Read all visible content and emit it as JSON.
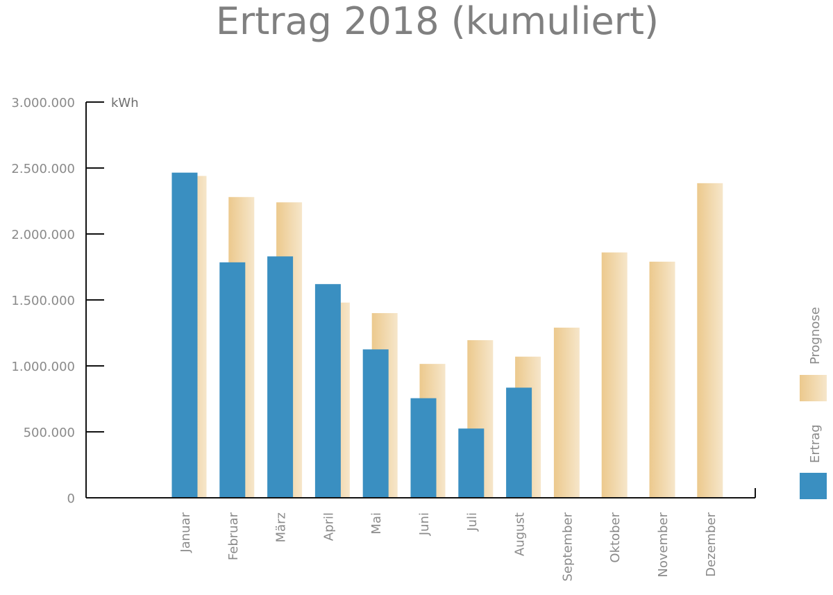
{
  "colors": {
    "ertrag": "#3a8fc1",
    "prognose_start": "#ecc98d",
    "prognose_end": "#f6e6ca",
    "axis": "#111111",
    "text": "#8a8a8a",
    "title": "#808080"
  },
  "chart_data": {
    "type": "bar",
    "title": "Ertrag 2018 (kumuliert)",
    "ylabel": "kWh",
    "xlabel": "",
    "ylim": [
      0,
      3000000
    ],
    "y_ticks": [
      0,
      500000,
      1000000,
      1500000,
      2000000,
      2500000,
      3000000
    ],
    "y_tick_labels": [
      "0",
      "500.000",
      "1.000.000",
      "1.500.000",
      "2.000.000",
      "2.500.000",
      "3.000.000"
    ],
    "categories": [
      "Januar",
      "Februar",
      "März",
      "April",
      "Mai",
      "Juni",
      "Juli",
      "August",
      "September",
      "Oktober",
      "November",
      "Dezember"
    ],
    "series": [
      {
        "name": "Ertrag",
        "values": [
          2465000,
          1785000,
          1830000,
          1620000,
          1125000,
          755000,
          525000,
          835000,
          null,
          null,
          null,
          null
        ]
      },
      {
        "name": "Prognose",
        "values": [
          2440000,
          2280000,
          2240000,
          1480000,
          1400000,
          1015000,
          1195000,
          1070000,
          1290000,
          1860000,
          1790000,
          2385000
        ]
      }
    ],
    "legend": {
      "position": "right",
      "orientation": "vertical",
      "entries": [
        "Prognose",
        "Ertrag"
      ]
    },
    "grid": false
  }
}
